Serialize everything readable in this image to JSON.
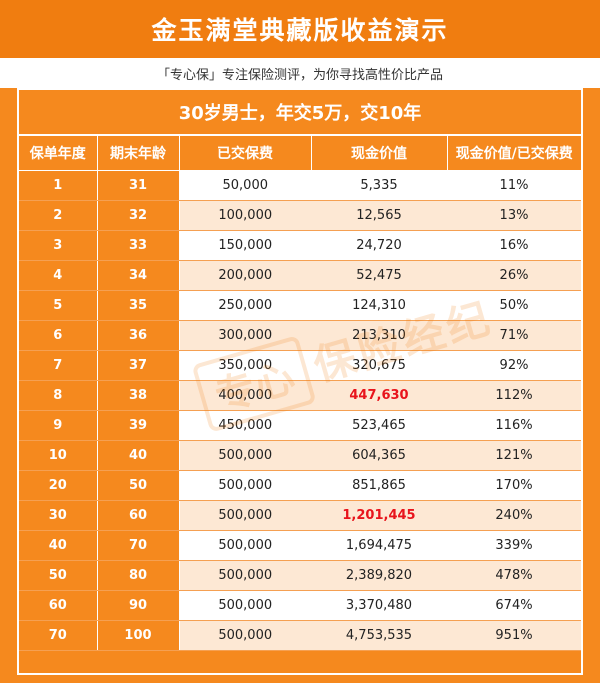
{
  "header": {
    "title": "金玉满堂典藏版收益演示",
    "subtitle": "「专心保」专注保险测评，为你寻找高性价比产品"
  },
  "table": {
    "scenario": "30岁男士，年交5万，交10年",
    "columns": [
      "保单年度",
      "期末年龄",
      "已交保费",
      "现金价值",
      "现金价值/已交保费"
    ],
    "rows": [
      [
        "1",
        "31",
        "50,000",
        "5,335",
        "11%"
      ],
      [
        "2",
        "32",
        "100,000",
        "12,565",
        "13%"
      ],
      [
        "3",
        "33",
        "150,000",
        "24,720",
        "16%"
      ],
      [
        "4",
        "34",
        "200,000",
        "52,475",
        "26%"
      ],
      [
        "5",
        "35",
        "250,000",
        "124,310",
        "50%"
      ],
      [
        "6",
        "36",
        "300,000",
        "213,310",
        "71%"
      ],
      [
        "7",
        "37",
        "350,000",
        "320,675",
        "92%"
      ],
      [
        "8",
        "38",
        "400,000",
        "447,630",
        "112%"
      ],
      [
        "9",
        "39",
        "450,000",
        "523,465",
        "116%"
      ],
      [
        "10",
        "40",
        "500,000",
        "604,365",
        "121%"
      ],
      [
        "20",
        "50",
        "500,000",
        "851,865",
        "170%"
      ],
      [
        "30",
        "60",
        "500,000",
        "1,201,445",
        "240%"
      ],
      [
        "40",
        "70",
        "500,000",
        "1,694,475",
        "339%"
      ],
      [
        "50",
        "80",
        "500,000",
        "2,389,820",
        "478%"
      ],
      [
        "60",
        "90",
        "500,000",
        "3,370,480",
        "674%"
      ],
      [
        "70",
        "100",
        "500,000",
        "4,753,535",
        "951%"
      ]
    ],
    "highlight_rows": [
      7,
      11
    ],
    "highlight_color": "#e8141c"
  },
  "watermark": {
    "box_text": "专心",
    "text": "保险经纪"
  }
}
